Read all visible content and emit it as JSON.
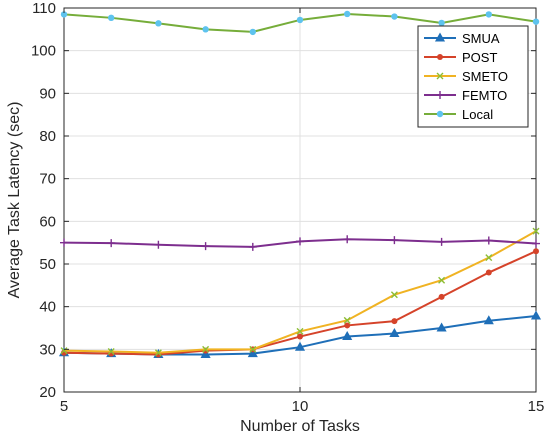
{
  "chart_data": {
    "type": "line",
    "xlabel": "Number of Tasks",
    "ylabel": "Average Task Latency (sec)",
    "xlim": [
      5,
      15
    ],
    "ylim": [
      20,
      110
    ],
    "xticks": [
      5,
      10,
      15
    ],
    "yticks": [
      20,
      30,
      40,
      50,
      60,
      70,
      80,
      90,
      100,
      110
    ],
    "grid": true,
    "legend_position": "top-right",
    "x": [
      5,
      6,
      7,
      8,
      9,
      10,
      11,
      12,
      13,
      14,
      15
    ],
    "series": [
      {
        "name": "SMUA",
        "color": "#1f6fb8",
        "marker": "triangle",
        "values": [
          29.2,
          29.0,
          28.8,
          28.8,
          29.0,
          30.5,
          33.0,
          33.7,
          35.0,
          36.7,
          37.8
        ]
      },
      {
        "name": "POST",
        "color": "#d5432a",
        "marker": "dot",
        "values": [
          29.2,
          29.0,
          28.8,
          29.7,
          30.0,
          33.0,
          35.6,
          36.6,
          42.3,
          48.0,
          53.0
        ]
      },
      {
        "name": "SMETO",
        "color": "#f0b323",
        "marker": "x",
        "values": [
          29.7,
          29.5,
          29.2,
          30.0,
          30.0,
          34.2,
          36.8,
          42.8,
          46.2,
          51.5,
          57.7
        ]
      },
      {
        "name": "FEMTO",
        "color": "#7d2e8e",
        "marker": "plus",
        "values": [
          55.0,
          54.9,
          54.5,
          54.2,
          54.0,
          55.3,
          55.8,
          55.6,
          55.2,
          55.5,
          54.8
        ]
      },
      {
        "name": "Local",
        "color": "#76ad3a",
        "marker": "dot-lightblue",
        "values": [
          108.5,
          107.7,
          106.4,
          105.0,
          104.4,
          107.2,
          108.6,
          108.0,
          106.5,
          108.5,
          106.8
        ]
      }
    ]
  }
}
